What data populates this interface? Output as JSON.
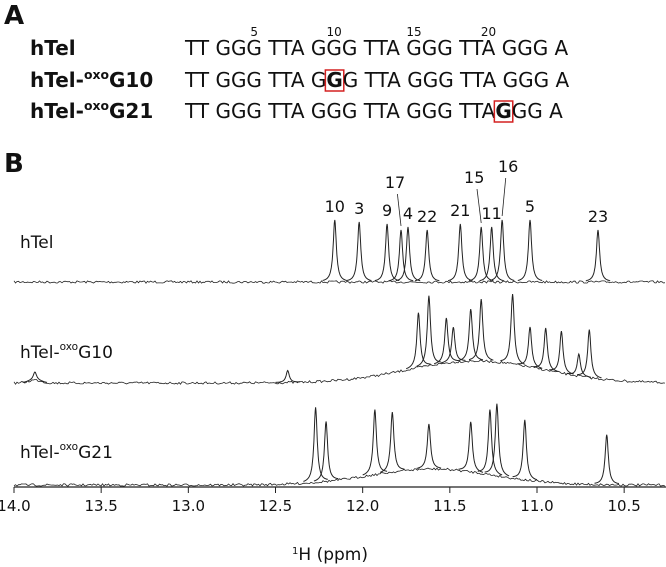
{
  "panel_a": {
    "label": "A",
    "positions": [
      5,
      10,
      15,
      20
    ],
    "rows": [
      {
        "name": [
          "hTel"
        ],
        "before": "TT GGG TTA GGG TTA GGG TTA GGG A",
        "highlight": "",
        "after": ""
      },
      {
        "name": [
          "hTel-",
          "oxo",
          "G10"
        ],
        "before": "TT GGG TTA G",
        "highlight": "G",
        "after": "G TTA GGG TTA GGG A"
      },
      {
        "name": [
          "hTel-",
          "oxo",
          "G21"
        ],
        "before": "TT GGG TTA GGG TTA GGG TTA ",
        "highlight": "G",
        "after": "GG A"
      }
    ]
  },
  "chart_data": {
    "type": "spectrum",
    "label": "B",
    "x_label": [
      "1",
      "H (ppm)"
    ],
    "xlim": [
      14.0,
      10.26
    ],
    "xticks": [
      {
        "value": 14.0,
        "label": "14.0"
      },
      13.5,
      {
        "value": 13.0,
        "label": "13.0"
      },
      12.5,
      {
        "value": 12.0,
        "label": "12.0"
      },
      11.5,
      {
        "value": 11.0,
        "label": "11.0"
      },
      10.5
    ],
    "color": "#222",
    "series": [
      {
        "name": [
          "hTel"
        ],
        "x": [
          12.16,
          12.02,
          11.86,
          11.78,
          11.74,
          11.63,
          11.44,
          11.32,
          11.26,
          11.2,
          11.04,
          10.65
        ],
        "values": [
          62,
          60,
          58,
          52,
          55,
          52,
          58,
          55,
          55,
          62,
          62,
          52
        ],
        "peak_labels": [
          "10",
          "3",
          "9",
          "17",
          "4",
          "22",
          "21",
          "15",
          "11",
          "16",
          "5",
          "23"
        ]
      },
      {
        "name": [
          "hTel-",
          "oxo",
          "G10"
        ],
        "x": [
          13.88,
          12.43,
          11.68,
          11.62,
          11.52,
          11.48,
          11.38,
          11.32,
          11.14,
          11.04,
          10.95,
          10.86,
          10.76,
          10.7
        ],
        "values": [
          8,
          12,
          55,
          70,
          45,
          35,
          52,
          62,
          70,
          40,
          42,
          42,
          22,
          48
        ]
      },
      {
        "name": [
          "hTel-",
          "oxo",
          "G21"
        ],
        "x": [
          12.27,
          12.21,
          11.93,
          11.83,
          11.62,
          11.38,
          11.27,
          11.23,
          11.07,
          10.6
        ],
        "values": [
          75,
          60,
          65,
          60,
          45,
          50,
          65,
          72,
          60,
          50
        ]
      }
    ]
  }
}
